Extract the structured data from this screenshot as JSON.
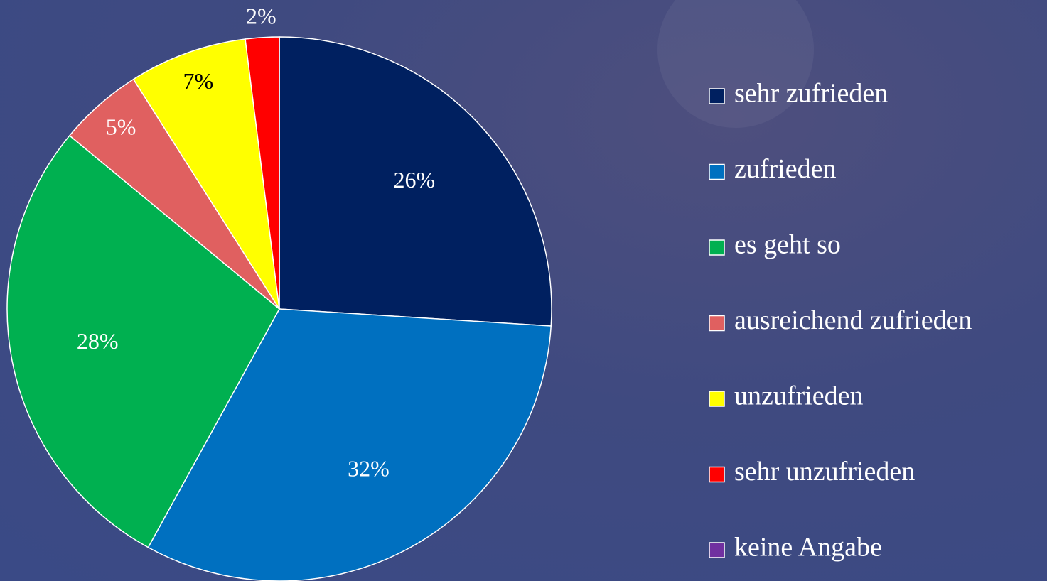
{
  "chart_data": {
    "type": "pie",
    "categories": [
      "sehr zufrieden",
      "zufrieden",
      "es geht so",
      "ausreichend zufrieden",
      "unzufrieden",
      "sehr unzufrieden",
      "keine Angabe"
    ],
    "values": [
      26,
      32,
      28,
      5,
      7,
      2,
      0
    ],
    "value_labels": [
      "26%",
      "32%",
      "28%",
      "5%",
      "7%",
      "2%",
      null
    ],
    "colors": [
      "#002060",
      "#0070c0",
      "#00b050",
      "#e06060",
      "#ffff00",
      "#ff0000",
      "#7030a0"
    ],
    "legend": "right"
  }
}
